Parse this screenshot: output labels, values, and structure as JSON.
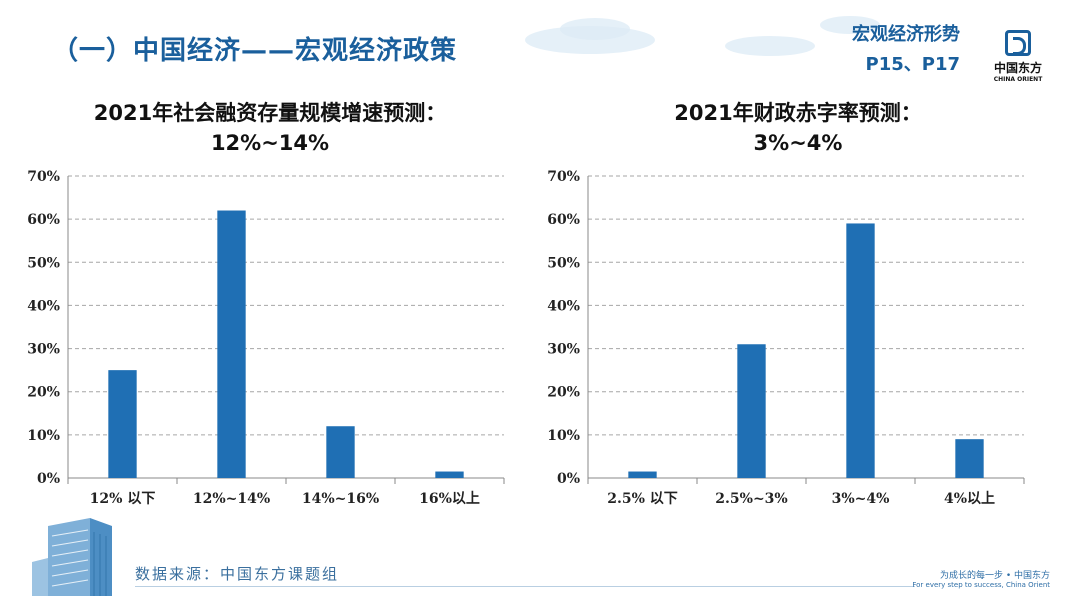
{
  "header": {
    "title": "（一）中国经济——宏观经济政策",
    "topic": "宏观经济形势",
    "pages": "P15、P17"
  },
  "logo": {
    "cn": "中国东方",
    "en": "CHINA ORIENT"
  },
  "charts": [
    {
      "title_line1": "2021年社会融资存量规模增速预测：",
      "title_line2": "12%~14%"
    },
    {
      "title_line1": "2021年财政赤字率预测：",
      "title_line2": "3%~4%"
    }
  ],
  "chart_data": [
    {
      "type": "bar",
      "title": "2021年社会融资存量规模增速预测：12%~14%",
      "categories": [
        "12% 以下",
        "12%~14%",
        "14%~16%",
        "16%以上"
      ],
      "values": [
        25,
        62,
        12,
        1.5
      ],
      "ylim": [
        0,
        70
      ],
      "yticks": [
        "0%",
        "10%",
        "20%",
        "30%",
        "40%",
        "50%",
        "60%",
        "70%"
      ],
      "grid": true,
      "color": "#1f6fb4"
    },
    {
      "type": "bar",
      "title": "2021年财政赤字率预测：3%~4%",
      "categories": [
        "2.5% 以下",
        "2.5%~3%",
        "3%~4%",
        "4%以上"
      ],
      "values": [
        1.5,
        31,
        59,
        9
      ],
      "ylim": [
        0,
        70
      ],
      "yticks": [
        "0%",
        "10%",
        "20%",
        "30%",
        "40%",
        "50%",
        "60%",
        "70%"
      ],
      "grid": true,
      "color": "#1f6fb4"
    }
  ],
  "footer": {
    "source": "数据来源：中国东方课题组",
    "slogan_cn": "为成长的每一步 • 中国东方",
    "slogan_en": "For every step to success, China Orient"
  },
  "colors": {
    "brand": "#1a5f9c",
    "bar": "#1f6fb4"
  }
}
